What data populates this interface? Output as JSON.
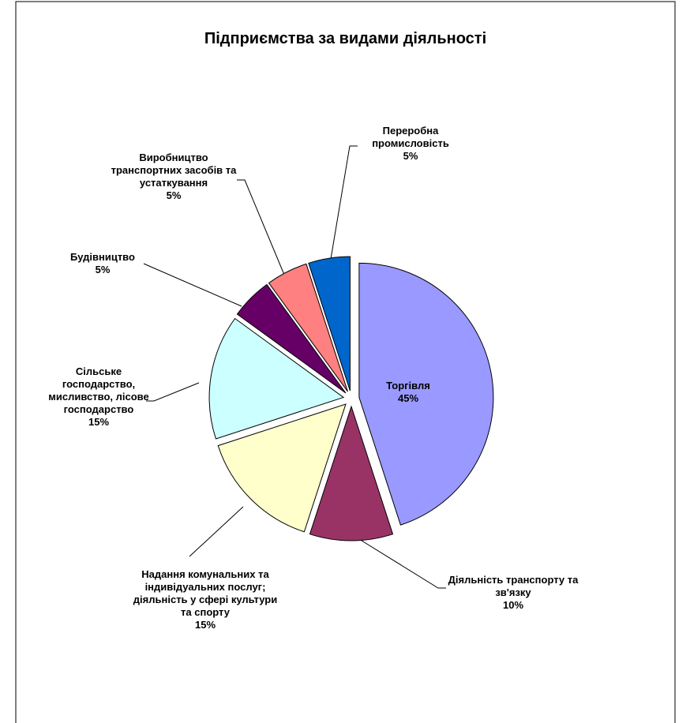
{
  "chart_data": {
    "type": "pie",
    "title": "Підприємства за видами діяльності",
    "categories": [
      "Торгівля",
      "Діяльність транспорту та зв'язку",
      "Надання комунальних та індивідуальних послуг; діяльність у сфері культури та спорту",
      "Сільське господарство, мисливство, лісове господарство",
      "Будівництво",
      "Виробництво транспортних засобів та устаткування",
      "Переробна промисловість"
    ],
    "values": [
      45,
      10,
      15,
      15,
      5,
      5,
      5
    ],
    "value_labels": [
      "45%",
      "10%",
      "15%",
      "15%",
      "5%",
      "5%",
      "5%"
    ],
    "colors": [
      "#9999ff",
      "#993366",
      "#ffffcc",
      "#ccffff",
      "#660066",
      "#ff8080",
      "#0066cc"
    ]
  }
}
